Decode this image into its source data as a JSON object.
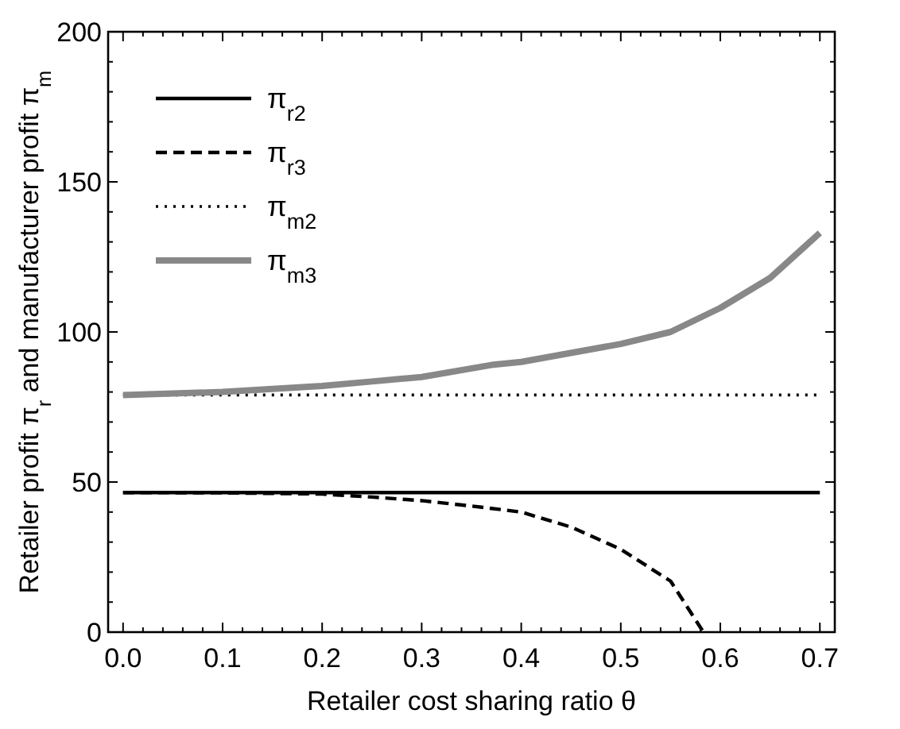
{
  "chart_data": {
    "type": "line",
    "xlabel": "Retailer cost sharing ratio θ",
    "ylabel": "Retailer profit π$_{r}$ and manufacturer profit π$_{m}$",
    "xlim": [
      -0.015,
      0.715
    ],
    "ylim": [
      0,
      200
    ],
    "xticks": [
      {
        "value": 0,
        "label": "0.0"
      },
      {
        "value": 0.02,
        "label": null
      },
      {
        "value": 0.04,
        "label": null
      },
      {
        "value": 0.06,
        "label": null
      },
      {
        "value": 0.08,
        "label": null
      },
      {
        "value": 0.1,
        "label": "0.1"
      },
      {
        "value": 0.12,
        "label": null
      },
      {
        "value": 0.14,
        "label": null
      },
      {
        "value": 0.16,
        "label": null
      },
      {
        "value": 0.18,
        "label": null
      },
      {
        "value": 0.2,
        "label": "0.2"
      },
      {
        "value": 0.22,
        "label": null
      },
      {
        "value": 0.24,
        "label": null
      },
      {
        "value": 0.26,
        "label": null
      },
      {
        "value": 0.28,
        "label": null
      },
      {
        "value": 0.3,
        "label": "0.3"
      },
      {
        "value": 0.32,
        "label": null
      },
      {
        "value": 0.34,
        "label": null
      },
      {
        "value": 0.36,
        "label": null
      },
      {
        "value": 0.38,
        "label": null
      },
      {
        "value": 0.4,
        "label": "0.4"
      },
      {
        "value": 0.42,
        "label": null
      },
      {
        "value": 0.44,
        "label": null
      },
      {
        "value": 0.46,
        "label": null
      },
      {
        "value": 0.48,
        "label": null
      },
      {
        "value": 0.5,
        "label": "0.5"
      },
      {
        "value": 0.52,
        "label": null
      },
      {
        "value": 0.54,
        "label": null
      },
      {
        "value": 0.56,
        "label": null
      },
      {
        "value": 0.58,
        "label": null
      },
      {
        "value": 0.6,
        "label": "0.6"
      },
      {
        "value": 0.62,
        "label": null
      },
      {
        "value": 0.64,
        "label": null
      },
      {
        "value": 0.66,
        "label": null
      },
      {
        "value": 0.68,
        "label": null
      },
      {
        "value": 0.7,
        "label": "0.7"
      }
    ],
    "yticks": [
      0,
      {
        "value": 10,
        "label": null
      },
      {
        "value": 20,
        "label": null
      },
      {
        "value": 30,
        "label": null
      },
      {
        "value": 40,
        "label": null
      },
      50,
      {
        "value": 60,
        "label": null
      },
      {
        "value": 70,
        "label": null
      },
      {
        "value": 80,
        "label": null
      },
      {
        "value": 90,
        "label": null
      },
      100,
      {
        "value": 110,
        "label": null
      },
      {
        "value": 120,
        "label": null
      },
      {
        "value": 130,
        "label": null
      },
      {
        "value": 140,
        "label": null
      },
      150,
      {
        "value": 160,
        "label": null
      },
      {
        "value": 170,
        "label": null
      },
      {
        "value": 180,
        "label": null
      },
      {
        "value": 190,
        "label": null
      },
      200
    ],
    "legend": "top left",
    "grid": false,
    "marker": "none",
    "series": [
      {
        "name": "π$_{r2}$",
        "color": "#000000",
        "line_style": "solid",
        "x": [
          0,
          0.7
        ],
        "values": [
          46.5,
          46.5
        ]
      },
      {
        "name": "π$_{r3}$",
        "color": "#000000",
        "line_style": "dashed",
        "x": [
          0,
          0.1,
          0.2,
          0.25,
          0.3,
          0.35,
          0.4,
          0.45,
          0.5,
          0.55,
          0.583
        ],
        "values": [
          46.5,
          46.4,
          46,
          45,
          43.8,
          42,
          40,
          35,
          27.6,
          17,
          0
        ]
      },
      {
        "name": "π$_{m2}$",
        "color": "#000000",
        "line_style": "dotted",
        "x": [
          0,
          0.7
        ],
        "values": [
          79,
          79
        ]
      },
      {
        "name": "π$_{m3}$",
        "color": "#888888",
        "line_style": "solid",
        "x": [
          0,
          0.1,
          0.2,
          0.25,
          0.3,
          0.37,
          0.4,
          0.5,
          0.55,
          0.6,
          0.65,
          0.7
        ],
        "values": [
          79,
          80,
          82,
          83.5,
          85,
          89,
          90,
          96,
          100,
          108,
          118,
          133
        ]
      }
    ]
  }
}
